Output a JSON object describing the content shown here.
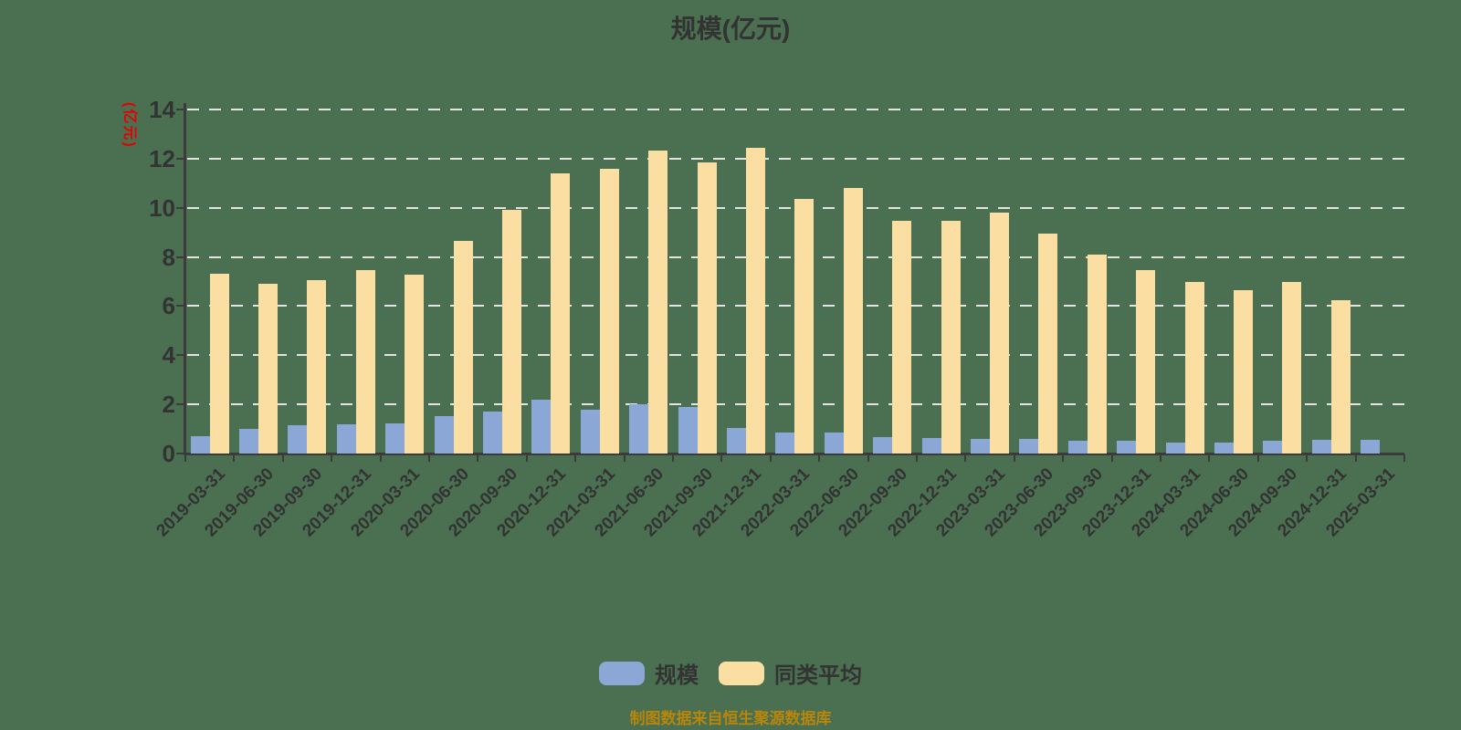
{
  "page": {
    "background_color": "#4A7051"
  },
  "title": {
    "text": "规模(亿元)"
  },
  "footer": {
    "text": "制图数据来自恒生聚源数据库",
    "color": "#B8860B"
  },
  "legend": {
    "items": [
      {
        "label": "规模",
        "color": "#8BA7D6"
      },
      {
        "label": "同类平均",
        "color": "#FBDFA2"
      }
    ]
  },
  "chart_data": {
    "type": "bar",
    "title": "规模(亿元)",
    "xlabel": "",
    "ylabel": "(亿元)",
    "ylabel_color": "#E60000",
    "ylim": [
      0,
      14
    ],
    "yticks": [
      0,
      2,
      4,
      6,
      8,
      10,
      12,
      14
    ],
    "grid": "horizontal-dashed-white",
    "legend_position": "bottom",
    "axis_color": "#3B3B3B",
    "categories": [
      "2019-03-31",
      "2019-06-30",
      "2019-09-30",
      "2019-12-31",
      "2020-03-31",
      "2020-06-30",
      "2020-09-30",
      "2020-12-31",
      "2021-03-31",
      "2021-06-30",
      "2021-09-30",
      "2021-12-31",
      "2022-03-31",
      "2022-06-30",
      "2022-09-30",
      "2022-12-31",
      "2023-03-31",
      "2023-06-30",
      "2023-09-30",
      "2023-12-31",
      "2024-03-31",
      "2024-06-30",
      "2024-09-30",
      "2024-12-31",
      "2025-03-31"
    ],
    "series": [
      {
        "name": "规模",
        "color": "#8BA7D6",
        "values": [
          0.71,
          1.02,
          1.15,
          1.19,
          1.23,
          1.52,
          1.7,
          2.21,
          1.78,
          1.99,
          1.89,
          1.03,
          0.85,
          0.86,
          0.67,
          0.65,
          0.61,
          0.6,
          0.52,
          0.52,
          0.45,
          0.45,
          0.51,
          0.55,
          0.54
        ]
      },
      {
        "name": "同类平均",
        "color": "#FBDFA2",
        "values": [
          7.3,
          6.9,
          7.05,
          7.45,
          7.27,
          8.65,
          9.93,
          11.39,
          11.57,
          12.33,
          11.86,
          12.44,
          10.35,
          10.8,
          9.48,
          9.48,
          9.79,
          8.95,
          8.08,
          7.45,
          6.98,
          6.63,
          6.98,
          6.25,
          null
        ]
      }
    ]
  }
}
